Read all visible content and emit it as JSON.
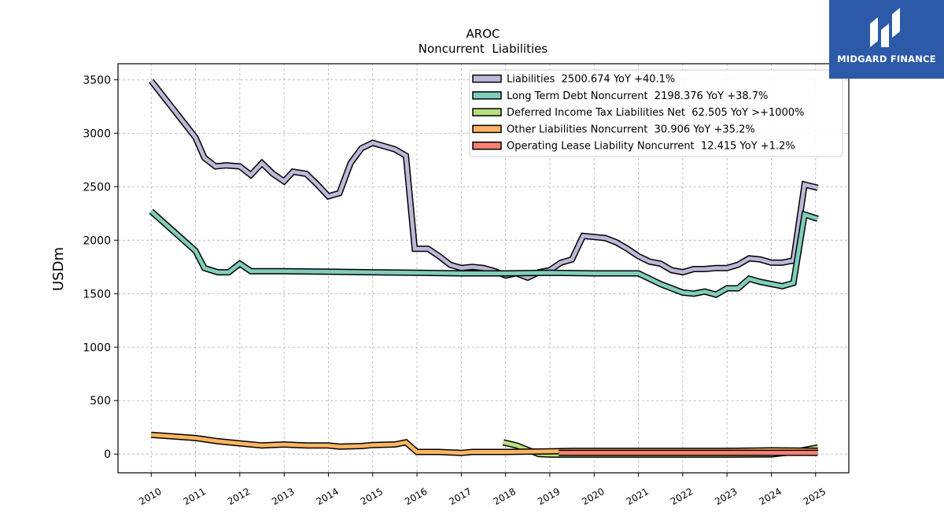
{
  "chart_data": {
    "type": "line",
    "title": "AROC",
    "subtitle": "Noncurrent  Liabilities",
    "xlabel": "",
    "ylabel": "USDm",
    "xlim": [
      2009.25,
      2025.75
    ],
    "ylim": [
      -175,
      3650
    ],
    "yticks": [
      0,
      500,
      1000,
      1500,
      2000,
      2500,
      3000,
      3500
    ],
    "xticks": [
      2010,
      2011,
      2012,
      2013,
      2014,
      2015,
      2016,
      2017,
      2018,
      2019,
      2020,
      2021,
      2022,
      2023,
      2024,
      2025
    ],
    "grid": true,
    "legend_position": "top-right",
    "series": [
      {
        "name": "Liabilities",
        "legend": "Liabilities  2500.674 YoY +40.1%",
        "color": "#bcb8d8",
        "points": [
          [
            2010.0,
            3490
          ],
          [
            2011.0,
            2960
          ],
          [
            2011.2,
            2770
          ],
          [
            2011.45,
            2690
          ],
          [
            2011.7,
            2700
          ],
          [
            2012.0,
            2690
          ],
          [
            2012.25,
            2610
          ],
          [
            2012.5,
            2720
          ],
          [
            2012.75,
            2620
          ],
          [
            2013.0,
            2550
          ],
          [
            2013.2,
            2640
          ],
          [
            2013.5,
            2620
          ],
          [
            2013.75,
            2520
          ],
          [
            2014.0,
            2410
          ],
          [
            2014.25,
            2440
          ],
          [
            2014.5,
            2720
          ],
          [
            2014.75,
            2860
          ],
          [
            2015.0,
            2910
          ],
          [
            2015.25,
            2880
          ],
          [
            2015.5,
            2850
          ],
          [
            2015.75,
            2790
          ],
          [
            2015.95,
            1920
          ],
          [
            2016.25,
            1920
          ],
          [
            2016.5,
            1850
          ],
          [
            2016.75,
            1770
          ],
          [
            2017.0,
            1740
          ],
          [
            2017.25,
            1750
          ],
          [
            2017.5,
            1740
          ],
          [
            2017.75,
            1710
          ],
          [
            2018.0,
            1670
          ],
          [
            2018.25,
            1690
          ],
          [
            2018.5,
            1650
          ],
          [
            2018.75,
            1700
          ],
          [
            2019.0,
            1720
          ],
          [
            2019.25,
            1790
          ],
          [
            2019.5,
            1820
          ],
          [
            2019.75,
            2040
          ],
          [
            2020.0,
            2030
          ],
          [
            2020.25,
            2020
          ],
          [
            2020.5,
            1980
          ],
          [
            2020.75,
            1920
          ],
          [
            2021.0,
            1850
          ],
          [
            2021.25,
            1800
          ],
          [
            2021.5,
            1780
          ],
          [
            2021.75,
            1720
          ],
          [
            2022.0,
            1700
          ],
          [
            2022.25,
            1730
          ],
          [
            2022.5,
            1730
          ],
          [
            2022.75,
            1740
          ],
          [
            2023.0,
            1740
          ],
          [
            2023.25,
            1770
          ],
          [
            2023.5,
            1830
          ],
          [
            2023.75,
            1820
          ],
          [
            2024.0,
            1790
          ],
          [
            2024.25,
            1790
          ],
          [
            2024.5,
            1810
          ],
          [
            2024.75,
            2520
          ],
          [
            2025.05,
            2490
          ]
        ]
      },
      {
        "name": "Long Term Debt Noncurrent",
        "legend": "Long Term Debt Noncurrent  2198.376 YoY +38.7%",
        "color": "#7fcdbb",
        "points": [
          [
            2010.0,
            2270
          ],
          [
            2011.0,
            1900
          ],
          [
            2011.2,
            1740
          ],
          [
            2011.5,
            1700
          ],
          [
            2011.75,
            1700
          ],
          [
            2012.0,
            1780
          ],
          [
            2012.25,
            1710
          ],
          [
            2013.0,
            1710
          ],
          [
            2014.0,
            1705
          ],
          [
            2015.0,
            1700
          ],
          [
            2016.0,
            1695
          ],
          [
            2017.0,
            1690
          ],
          [
            2018.0,
            1690
          ],
          [
            2019.0,
            1695
          ],
          [
            2020.0,
            1690
          ],
          [
            2021.0,
            1690
          ],
          [
            2021.25,
            1640
          ],
          [
            2021.5,
            1590
          ],
          [
            2021.75,
            1550
          ],
          [
            2022.0,
            1510
          ],
          [
            2022.25,
            1500
          ],
          [
            2022.5,
            1520
          ],
          [
            2022.75,
            1490
          ],
          [
            2023.0,
            1550
          ],
          [
            2023.25,
            1550
          ],
          [
            2023.5,
            1640
          ],
          [
            2023.75,
            1610
          ],
          [
            2024.0,
            1590
          ],
          [
            2024.25,
            1570
          ],
          [
            2024.5,
            1600
          ],
          [
            2024.75,
            2240
          ],
          [
            2025.05,
            2200
          ]
        ]
      },
      {
        "name": "Deferred Income Tax Liabilities Net",
        "legend": "Deferred Income Tax Liabilities Net  62.505 YoY >+1000%",
        "color": "#b8e07e",
        "points": [
          [
            2017.95,
            110
          ],
          [
            2018.25,
            80
          ],
          [
            2018.5,
            40
          ],
          [
            2018.75,
            0
          ],
          [
            2019.0,
            -5
          ],
          [
            2020.0,
            -5
          ],
          [
            2021.0,
            -5
          ],
          [
            2022.0,
            -5
          ],
          [
            2023.0,
            -5
          ],
          [
            2024.0,
            -3
          ],
          [
            2024.5,
            20
          ],
          [
            2025.05,
            62
          ]
        ]
      },
      {
        "name": "Other Liabilities Noncurrent",
        "legend": "Other Liabilities Noncurrent  30.906 YoY +35.2%",
        "color": "#fdb462",
        "points": [
          [
            2010.0,
            180
          ],
          [
            2011.0,
            150
          ],
          [
            2011.5,
            120
          ],
          [
            2012.0,
            100
          ],
          [
            2012.5,
            80
          ],
          [
            2013.0,
            90
          ],
          [
            2013.5,
            80
          ],
          [
            2014.0,
            80
          ],
          [
            2014.25,
            70
          ],
          [
            2014.75,
            75
          ],
          [
            2015.0,
            85
          ],
          [
            2015.5,
            90
          ],
          [
            2015.75,
            110
          ],
          [
            2016.0,
            20
          ],
          [
            2016.5,
            20
          ],
          [
            2017.0,
            10
          ],
          [
            2017.25,
            20
          ],
          [
            2018.0,
            20
          ],
          [
            2019.0,
            25
          ],
          [
            2019.5,
            30
          ],
          [
            2020.0,
            30
          ],
          [
            2021.0,
            30
          ],
          [
            2022.0,
            30
          ],
          [
            2023.0,
            30
          ],
          [
            2024.0,
            35
          ],
          [
            2025.05,
            31
          ]
        ]
      },
      {
        "name": "Operating Lease Liability Noncurrent",
        "legend": "Operating Lease Liability Noncurrent  12.415 YoY +1.2%",
        "color": "#fb8072",
        "points": [
          [
            2019.2,
            12
          ],
          [
            2020.0,
            12
          ],
          [
            2021.0,
            12
          ],
          [
            2022.0,
            12
          ],
          [
            2023.0,
            12
          ],
          [
            2024.0,
            12
          ],
          [
            2025.05,
            12
          ]
        ]
      }
    ]
  },
  "logo": {
    "text": "MIDGARD FINANCE",
    "bg": "#2c5aa8"
  }
}
